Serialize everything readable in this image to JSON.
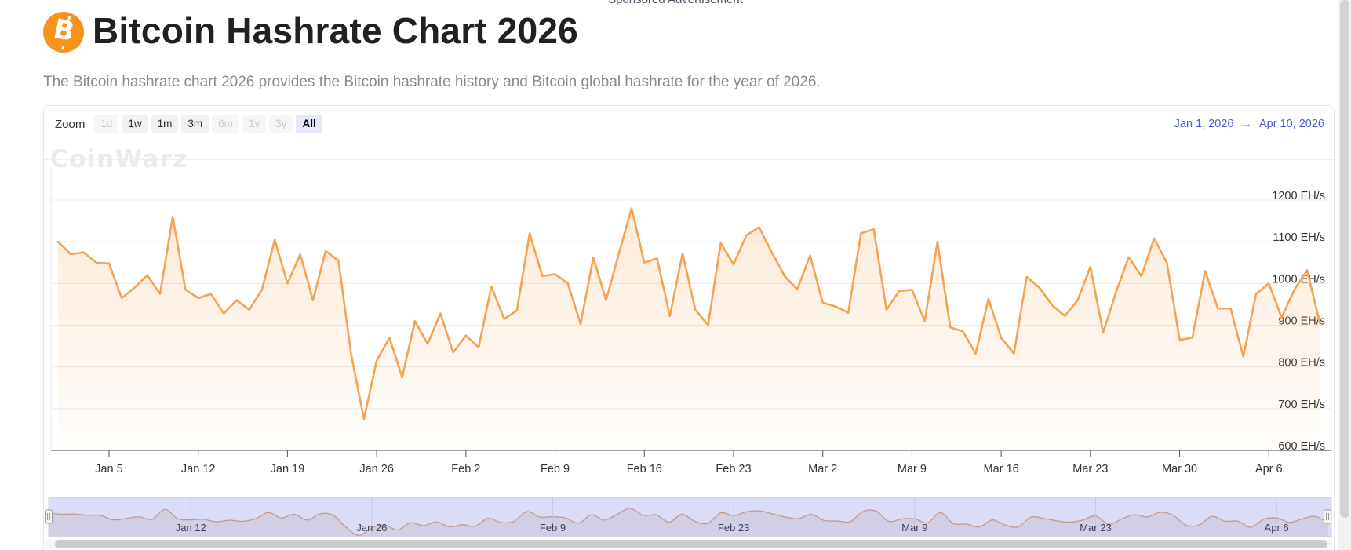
{
  "page": {
    "sponsored_label": "Sponsored Advertisement",
    "title": "Bitcoin Hashrate Chart 2026",
    "subtitle": "The Bitcoin hashrate chart 2026 provides the Bitcoin hashrate history and Bitcoin global hashrate for the year of 2026.",
    "bitcoin_symbol": "B",
    "watermark": "CoinWarz"
  },
  "toolbar": {
    "zoom_label": "Zoom",
    "buttons": [
      {
        "label": "1d",
        "state": "disabled"
      },
      {
        "label": "1w",
        "state": "normal"
      },
      {
        "label": "1m",
        "state": "normal"
      },
      {
        "label": "3m",
        "state": "normal"
      },
      {
        "label": "6m",
        "state": "disabled"
      },
      {
        "label": "1y",
        "state": "disabled"
      },
      {
        "label": "3y",
        "state": "disabled"
      },
      {
        "label": "All",
        "state": "selected"
      }
    ],
    "range_from": "Jan 1, 2026",
    "range_arrow": "→",
    "range_to": "Apr 10, 2026"
  },
  "chart_data": {
    "type": "area",
    "title": "Bitcoin Hashrate",
    "unit": "EH/s",
    "start_date": "Jan 1, 2026",
    "end_date": "Apr 10, 2026",
    "interval": "daily",
    "ylim": [
      600,
      1250
    ],
    "grid": true,
    "y_ticks": [
      {
        "value": 1200,
        "label": "1200 EH/s"
      },
      {
        "value": 1100,
        "label": "1100 EH/s"
      },
      {
        "value": 1000,
        "label": "1000 EH/s"
      },
      {
        "value": 900,
        "label": "900 EH/s"
      },
      {
        "value": 800,
        "label": "800 EH/s"
      },
      {
        "value": 700,
        "label": "700 EH/s"
      },
      {
        "value": 600,
        "label": "600 EH/s"
      }
    ],
    "x_ticks": [
      {
        "label": "Jan 5",
        "day": 4
      },
      {
        "label": "Jan 12",
        "day": 11
      },
      {
        "label": "Jan 19",
        "day": 18
      },
      {
        "label": "Jan 26",
        "day": 25
      },
      {
        "label": "Feb 2",
        "day": 32
      },
      {
        "label": "Feb 9",
        "day": 39
      },
      {
        "label": "Feb 16",
        "day": 46
      },
      {
        "label": "Feb 23",
        "day": 53
      },
      {
        "label": "Mar 2",
        "day": 60
      },
      {
        "label": "Mar 9",
        "day": 67
      },
      {
        "label": "Mar 16",
        "day": 74
      },
      {
        "label": "Mar 23",
        "day": 81
      },
      {
        "label": "Mar 30",
        "day": 88
      },
      {
        "label": "Apr 6",
        "day": 95
      }
    ],
    "navigator_ticks": [
      {
        "label": "Jan 12",
        "day": 11
      },
      {
        "label": "Jan 26",
        "day": 25
      },
      {
        "label": "Feb 9",
        "day": 39
      },
      {
        "label": "Feb 23",
        "day": 53
      },
      {
        "label": "Mar 9",
        "day": 67
      },
      {
        "label": "Mar 23",
        "day": 81
      },
      {
        "label": "Apr 6",
        "day": 95
      }
    ],
    "series": [
      {
        "name": "Bitcoin Hashrate (EH/s)",
        "color": "#f5a352",
        "values": [
          1100,
          1070,
          1075,
          1050,
          1048,
          965,
          990,
          1020,
          975,
          1160,
          985,
          965,
          975,
          928,
          960,
          937,
          985,
          1105,
          1000,
          1070,
          960,
          1078,
          1055,
          830,
          675,
          815,
          870,
          775,
          910,
          855,
          928,
          835,
          875,
          847,
          993,
          915,
          935,
          1120,
          1018,
          1022,
          1000,
          903,
          1062,
          960,
          1072,
          1180,
          1050,
          1060,
          922,
          1072,
          937,
          900,
          1097,
          1046,
          1115,
          1135,
          1075,
          1018,
          986,
          1067,
          954,
          945,
          930,
          1120,
          1130,
          937,
          982,
          985,
          910,
          1100,
          895,
          885,
          832,
          963,
          870,
          832,
          1016,
          990,
          948,
          922,
          960,
          1040,
          882,
          978,
          1063,
          1018,
          1108,
          1050,
          865,
          870,
          1030,
          940,
          940,
          825,
          975,
          1000,
          918,
          985,
          1032,
          905
        ]
      }
    ]
  },
  "colors": {
    "bitcoin_orange": "#f7931a",
    "series_line": "#f5a352",
    "link_blue": "#4a5ad6",
    "grid_line": "#ebebeb",
    "axis_line": "#3f3f3f",
    "axis_label": "#333333",
    "navigator_bg": "#dbddf6",
    "navigator_fill": "#d2cfe4",
    "navigator_line": "#c79a87",
    "navigator_grid": "#c3c6e4",
    "navigator_label": "#3f3f55",
    "scrollbar_thumb": "#cccccc",
    "selected_zoom_bg": "#e5e7fa"
  }
}
